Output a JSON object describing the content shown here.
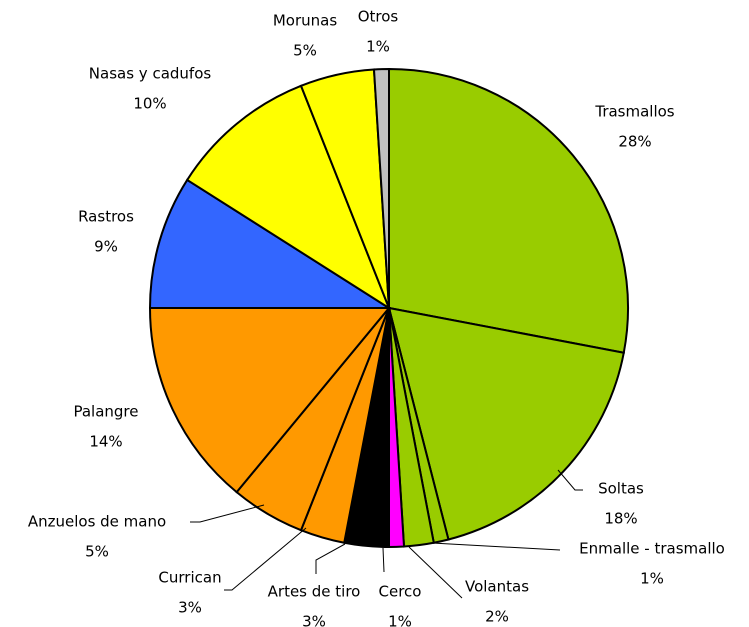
{
  "chart_data": {
    "type": "pie",
    "categories": [
      "Trasmallos",
      "Soltas",
      "Enmalle - trasmallo",
      "Volantas",
      "Cerco",
      "Artes de tiro",
      "Currican",
      "Anzuelos de mano",
      "Palangre",
      "Rastros",
      "Nasas y cadufos",
      "Morunas",
      "Otros"
    ],
    "values": [
      28,
      18,
      1,
      2,
      1,
      3,
      3,
      5,
      14,
      9,
      10,
      5,
      1
    ],
    "value_labels": [
      "28%",
      "18%",
      "1%",
      "2%",
      "1%",
      "3%",
      "3%",
      "5%",
      "14%",
      "9%",
      "10%",
      "5%",
      "1%"
    ],
    "colors": [
      "#99cc00",
      "#99cc00",
      "#99cc00",
      "#99cc00",
      "#ff00ff",
      "#000000",
      "#ff9900",
      "#ff9900",
      "#ff9900",
      "#3366ff",
      "#ffff00",
      "#ffff00",
      "#c0c0c0"
    ]
  }
}
